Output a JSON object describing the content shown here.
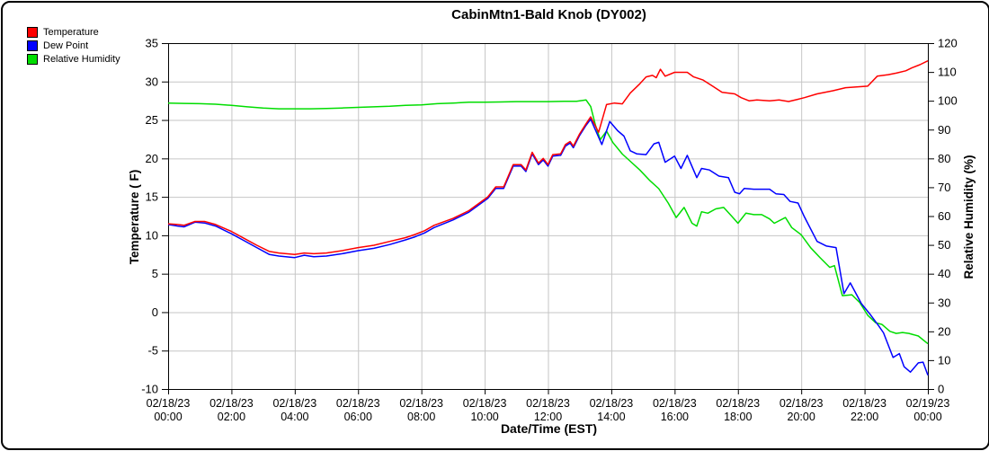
{
  "chart_data": {
    "type": "line",
    "title": "CabinMtn1-Bald Knob (DY002)",
    "xlabel": "Date/Time (EST)",
    "grid": true,
    "legend_position": "top-left",
    "x_axis": {
      "unit": "hours",
      "range": [
        0,
        24
      ],
      "tick_step_hours": 2,
      "tick_labels": [
        {
          "date": "02/18/23",
          "time": "00:00"
        },
        {
          "date": "02/18/23",
          "time": "02:00"
        },
        {
          "date": "02/18/23",
          "time": "04:00"
        },
        {
          "date": "02/18/23",
          "time": "06:00"
        },
        {
          "date": "02/18/23",
          "time": "08:00"
        },
        {
          "date": "02/18/23",
          "time": "10:00"
        },
        {
          "date": "02/18/23",
          "time": "12:00"
        },
        {
          "date": "02/18/23",
          "time": "14:00"
        },
        {
          "date": "02/18/23",
          "time": "16:00"
        },
        {
          "date": "02/18/23",
          "time": "18:00"
        },
        {
          "date": "02/18/23",
          "time": "20:00"
        },
        {
          "date": "02/18/23",
          "time": "22:00"
        },
        {
          "date": "02/19/23",
          "time": "00:00"
        }
      ]
    },
    "left_axis": {
      "label": "Temperature ( F)",
      "min": -10,
      "max": 35,
      "tick_step": 5,
      "ticks": [
        35,
        30,
        25,
        20,
        15,
        10,
        5,
        0,
        -5,
        -10
      ]
    },
    "right_axis": {
      "label": "Relative Humidity (%)",
      "min": 0,
      "max": 120,
      "tick_step": 10,
      "ticks": [
        120,
        110,
        100,
        90,
        80,
        70,
        60,
        50,
        40,
        30,
        20,
        10,
        0
      ]
    },
    "colors": {
      "grid": "#c6c6c6",
      "frame": "#000000"
    },
    "series": [
      {
        "name": "Temperature",
        "color": "#ff0000",
        "axis": "left",
        "points": [
          [
            0,
            11.5
          ],
          [
            0.3,
            11.4
          ],
          [
            0.5,
            11.3
          ],
          [
            0.85,
            11.8
          ],
          [
            1.15,
            11.8
          ],
          [
            1.5,
            11.4
          ],
          [
            2,
            10.5
          ],
          [
            2.4,
            9.6
          ],
          [
            2.8,
            8.7
          ],
          [
            3.2,
            7.9
          ],
          [
            3.5,
            7.7
          ],
          [
            4,
            7.5
          ],
          [
            4.3,
            7.7
          ],
          [
            4.6,
            7.6
          ],
          [
            5,
            7.7
          ],
          [
            5.5,
            8
          ],
          [
            6,
            8.4
          ],
          [
            6.5,
            8.7
          ],
          [
            7,
            9.2
          ],
          [
            7.5,
            9.7
          ],
          [
            7.8,
            10.1
          ],
          [
            8.1,
            10.6
          ],
          [
            8.4,
            11.3
          ],
          [
            9,
            12.2
          ],
          [
            9.5,
            13.2
          ],
          [
            10.1,
            15
          ],
          [
            10.35,
            16.3
          ],
          [
            10.6,
            16.3
          ],
          [
            10.9,
            19.2
          ],
          [
            11.15,
            19.2
          ],
          [
            11.3,
            18.5
          ],
          [
            11.5,
            20.8
          ],
          [
            11.7,
            19.4
          ],
          [
            11.85,
            20
          ],
          [
            12,
            19.2
          ],
          [
            12.15,
            20.5
          ],
          [
            12.4,
            20.6
          ],
          [
            12.55,
            21.8
          ],
          [
            12.7,
            22.2
          ],
          [
            12.8,
            21.6
          ],
          [
            13,
            23.2
          ],
          [
            13.2,
            24.5
          ],
          [
            13.35,
            25.4
          ],
          [
            13.6,
            23.4
          ],
          [
            13.85,
            27
          ],
          [
            14.1,
            27.2
          ],
          [
            14.35,
            27.1
          ],
          [
            14.6,
            28.5
          ],
          [
            14.9,
            29.7
          ],
          [
            15.1,
            30.6
          ],
          [
            15.3,
            30.8
          ],
          [
            15.42,
            30.5
          ],
          [
            15.55,
            31.6
          ],
          [
            15.7,
            30.7
          ],
          [
            16,
            31.2
          ],
          [
            16.4,
            31.2
          ],
          [
            16.6,
            30.6
          ],
          [
            16.9,
            30.2
          ],
          [
            17.2,
            29.4
          ],
          [
            17.5,
            28.6
          ],
          [
            17.9,
            28.4
          ],
          [
            18.1,
            27.9
          ],
          [
            18.35,
            27.5
          ],
          [
            18.6,
            27.6
          ],
          [
            19,
            27.5
          ],
          [
            19.3,
            27.6
          ],
          [
            19.6,
            27.4
          ],
          [
            19.9,
            27.7
          ],
          [
            20.1,
            27.9
          ],
          [
            20.5,
            28.4
          ],
          [
            21,
            28.8
          ],
          [
            21.4,
            29.2
          ],
          [
            21.75,
            29.3
          ],
          [
            22.1,
            29.4
          ],
          [
            22.4,
            30.7
          ],
          [
            22.75,
            30.9
          ],
          [
            23,
            31.1
          ],
          [
            23.3,
            31.4
          ],
          [
            23.5,
            31.8
          ],
          [
            23.75,
            32.2
          ],
          [
            24,
            32.7
          ]
        ]
      },
      {
        "name": "Dew Point",
        "color": "#0000ff",
        "axis": "left",
        "points": [
          [
            0,
            11.4
          ],
          [
            0.3,
            11.2
          ],
          [
            0.5,
            11.1
          ],
          [
            0.85,
            11.7
          ],
          [
            1.15,
            11.6
          ],
          [
            1.5,
            11.2
          ],
          [
            2,
            10.2
          ],
          [
            2.4,
            9.3
          ],
          [
            2.8,
            8.4
          ],
          [
            3.2,
            7.5
          ],
          [
            3.5,
            7.3
          ],
          [
            4,
            7.1
          ],
          [
            4.3,
            7.4
          ],
          [
            4.6,
            7.2
          ],
          [
            5,
            7.3
          ],
          [
            5.5,
            7.6
          ],
          [
            6,
            8
          ],
          [
            6.5,
            8.3
          ],
          [
            7,
            8.8
          ],
          [
            7.5,
            9.4
          ],
          [
            7.8,
            9.8
          ],
          [
            8.1,
            10.3
          ],
          [
            8.4,
            11
          ],
          [
            9,
            12
          ],
          [
            9.5,
            13
          ],
          [
            10.1,
            14.8
          ],
          [
            10.35,
            16.1
          ],
          [
            10.6,
            16.1
          ],
          [
            10.9,
            19
          ],
          [
            11.15,
            19
          ],
          [
            11.3,
            18.3
          ],
          [
            11.5,
            20.6
          ],
          [
            11.7,
            19.2
          ],
          [
            11.85,
            19.8
          ],
          [
            12,
            19
          ],
          [
            12.15,
            20.3
          ],
          [
            12.4,
            20.4
          ],
          [
            12.55,
            21.6
          ],
          [
            12.7,
            22
          ],
          [
            12.8,
            21.4
          ],
          [
            13,
            23
          ],
          [
            13.2,
            24.3
          ],
          [
            13.35,
            25.1
          ],
          [
            13.7,
            21.8
          ],
          [
            13.95,
            24.8
          ],
          [
            14.2,
            23.6
          ],
          [
            14.4,
            22.9
          ],
          [
            14.6,
            21
          ],
          [
            14.8,
            20.6
          ],
          [
            15.1,
            20.5
          ],
          [
            15.35,
            21.9
          ],
          [
            15.5,
            22.1
          ],
          [
            15.7,
            19.5
          ],
          [
            16,
            20.3
          ],
          [
            16.2,
            18.7
          ],
          [
            16.4,
            20.4
          ],
          [
            16.7,
            17.5
          ],
          [
            16.85,
            18.7
          ],
          [
            17.1,
            18.5
          ],
          [
            17.4,
            17.7
          ],
          [
            17.7,
            17.5
          ],
          [
            17.9,
            15.6
          ],
          [
            18.05,
            15.4
          ],
          [
            18.2,
            16.1
          ],
          [
            18.5,
            16
          ],
          [
            19,
            16
          ],
          [
            19.2,
            15.4
          ],
          [
            19.45,
            15.3
          ],
          [
            19.65,
            14.4
          ],
          [
            19.9,
            14.2
          ],
          [
            20.1,
            12.4
          ],
          [
            20.5,
            9.2
          ],
          [
            20.8,
            8.6
          ],
          [
            21.1,
            8.4
          ],
          [
            21.35,
            2.4
          ],
          [
            21.55,
            3.8
          ],
          [
            21.9,
            1.1
          ],
          [
            22.2,
            -0.4
          ],
          [
            22.45,
            -1.8
          ],
          [
            22.6,
            -2.7
          ],
          [
            22.9,
            -5.9
          ],
          [
            23.1,
            -5.4
          ],
          [
            23.25,
            -7.1
          ],
          [
            23.45,
            -7.8
          ],
          [
            23.7,
            -6.6
          ],
          [
            23.85,
            -6.5
          ],
          [
            24,
            -8.2
          ]
        ]
      },
      {
        "name": "Relative Humidity",
        "color": "#00dd00",
        "axis": "right",
        "points": [
          [
            0,
            99.2
          ],
          [
            0.5,
            99.1
          ],
          [
            1,
            99
          ],
          [
            1.5,
            98.8
          ],
          [
            2,
            98.4
          ],
          [
            2.5,
            97.9
          ],
          [
            3,
            97.5
          ],
          [
            3.5,
            97.2
          ],
          [
            4,
            97.2
          ],
          [
            4.5,
            97.2
          ],
          [
            5,
            97.3
          ],
          [
            5.5,
            97.5
          ],
          [
            6,
            97.7
          ],
          [
            6.5,
            97.9
          ],
          [
            7,
            98.1
          ],
          [
            7.5,
            98.4
          ],
          [
            8,
            98.6
          ],
          [
            8.5,
            99
          ],
          [
            9,
            99.2
          ],
          [
            9.5,
            99.5
          ],
          [
            10,
            99.5
          ],
          [
            10.5,
            99.6
          ],
          [
            11,
            99.7
          ],
          [
            11.5,
            99.7
          ],
          [
            12,
            99.7
          ],
          [
            12.5,
            99.8
          ],
          [
            12.9,
            99.8
          ],
          [
            13.2,
            100.3
          ],
          [
            13.35,
            98
          ],
          [
            13.5,
            91.5
          ],
          [
            13.65,
            86.5
          ],
          [
            13.85,
            89.5
          ],
          [
            14.05,
            85.5
          ],
          [
            14.35,
            81.5
          ],
          [
            14.6,
            79
          ],
          [
            14.9,
            76
          ],
          [
            15.2,
            72.5
          ],
          [
            15.5,
            69.5
          ],
          [
            15.8,
            64.5
          ],
          [
            16.05,
            59.5
          ],
          [
            16.3,
            63
          ],
          [
            16.55,
            57.5
          ],
          [
            16.7,
            56.5
          ],
          [
            16.85,
            61.5
          ],
          [
            17.05,
            61
          ],
          [
            17.3,
            62.5
          ],
          [
            17.55,
            63
          ],
          [
            17.8,
            60
          ],
          [
            18,
            57.5
          ],
          [
            18.25,
            61
          ],
          [
            18.5,
            60.5
          ],
          [
            18.75,
            60.5
          ],
          [
            19,
            59
          ],
          [
            19.15,
            57.5
          ],
          [
            19.5,
            59.5
          ],
          [
            19.7,
            56
          ],
          [
            20,
            53.5
          ],
          [
            20.3,
            49
          ],
          [
            20.6,
            45.5
          ],
          [
            20.9,
            42.2
          ],
          [
            21.05,
            42.8
          ],
          [
            21.3,
            32.4
          ],
          [
            21.6,
            32.7
          ],
          [
            21.85,
            30
          ],
          [
            22.1,
            25.6
          ],
          [
            22.35,
            23
          ],
          [
            22.55,
            22.4
          ],
          [
            22.8,
            20
          ],
          [
            23,
            19.3
          ],
          [
            23.2,
            19.6
          ],
          [
            23.4,
            19.3
          ],
          [
            23.7,
            18.4
          ],
          [
            24,
            15.7
          ]
        ]
      }
    ]
  }
}
